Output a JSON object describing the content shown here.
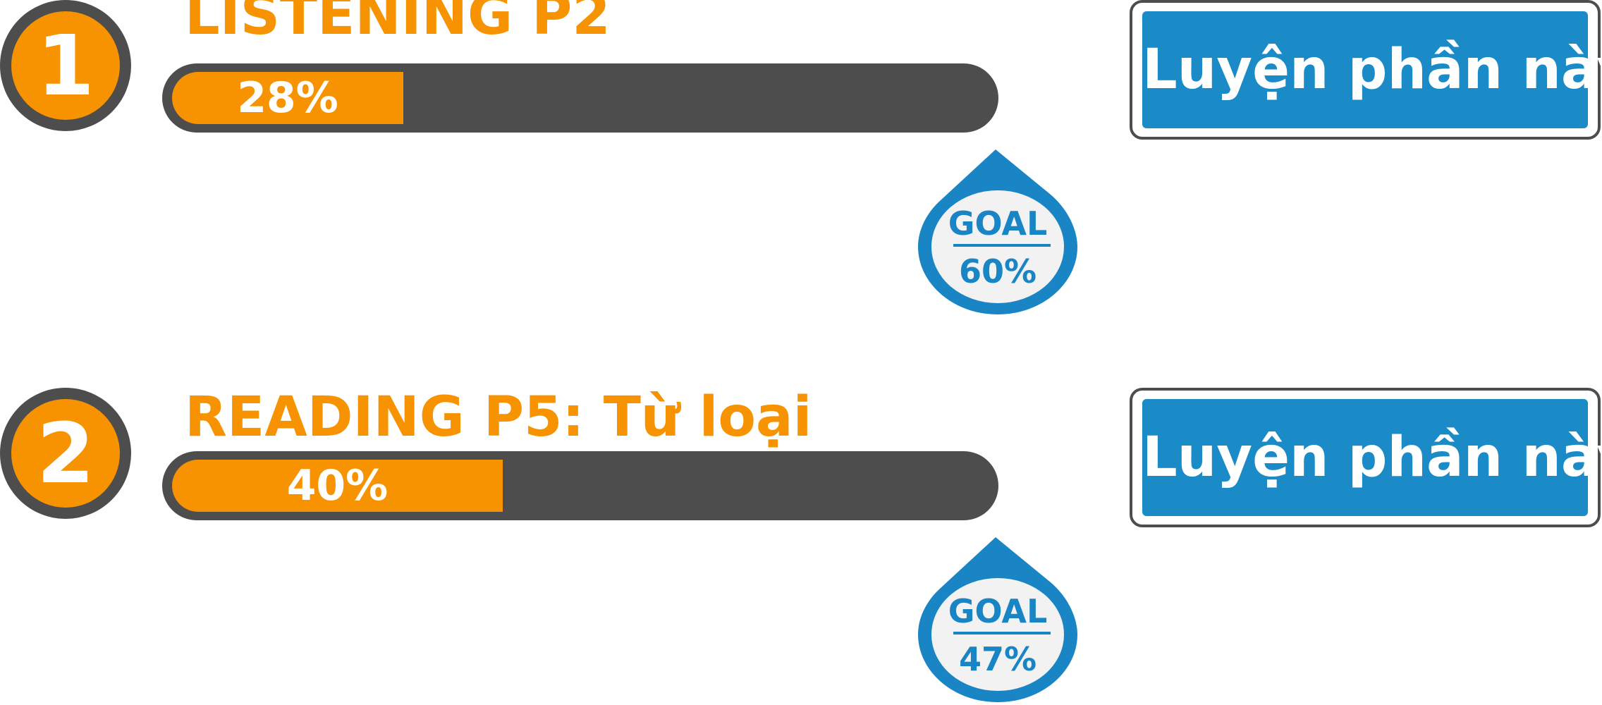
{
  "tasks": [
    {
      "number": "1",
      "title": "LISTENING P2",
      "progress_label": "28%",
      "progress": 0.28,
      "goal_title": "GOAL",
      "goal_value": "60%",
      "button_label": "Luyện phần này"
    },
    {
      "number": "2",
      "title": "READING P5: Từ loại",
      "progress_label": "40%",
      "progress": 0.4,
      "goal_title": "GOAL",
      "goal_value": "47%",
      "button_label": "Luyện phần này"
    }
  ],
  "colors": {
    "accent_orange": "#f79200",
    "track_gray": "#4d4d4d",
    "goal_blue": "#1a85c4",
    "button_blue": "#1a8bc6"
  },
  "icons": {
    "goal_marker": "goal-drop-icon"
  }
}
